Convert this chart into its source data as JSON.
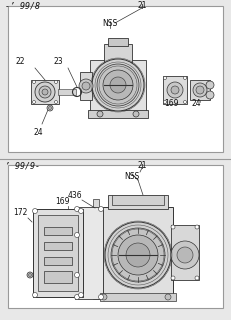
{
  "bg_color": "#e8e8e8",
  "box_bg": "#ffffff",
  "border_color": "#999999",
  "line_color": "#333333",
  "part_fill": "#d8d8d8",
  "part_edge": "#444444",
  "text_color": "#111111",
  "title1": "-’ 99/8",
  "title2": "’ 99/9-",
  "label_21_top": "21",
  "label_nss_top": "NSS",
  "label_22": "22",
  "label_23": "23",
  "label_24_left": "24",
  "label_24_right": "24",
  "label_169_top": "169",
  "label_21_bot": "21",
  "label_nss_bot": "NSS",
  "label_436": "436",
  "label_169_bot": "169",
  "label_172": "172",
  "fig_width": 2.31,
  "fig_height": 3.2,
  "dpi": 100
}
